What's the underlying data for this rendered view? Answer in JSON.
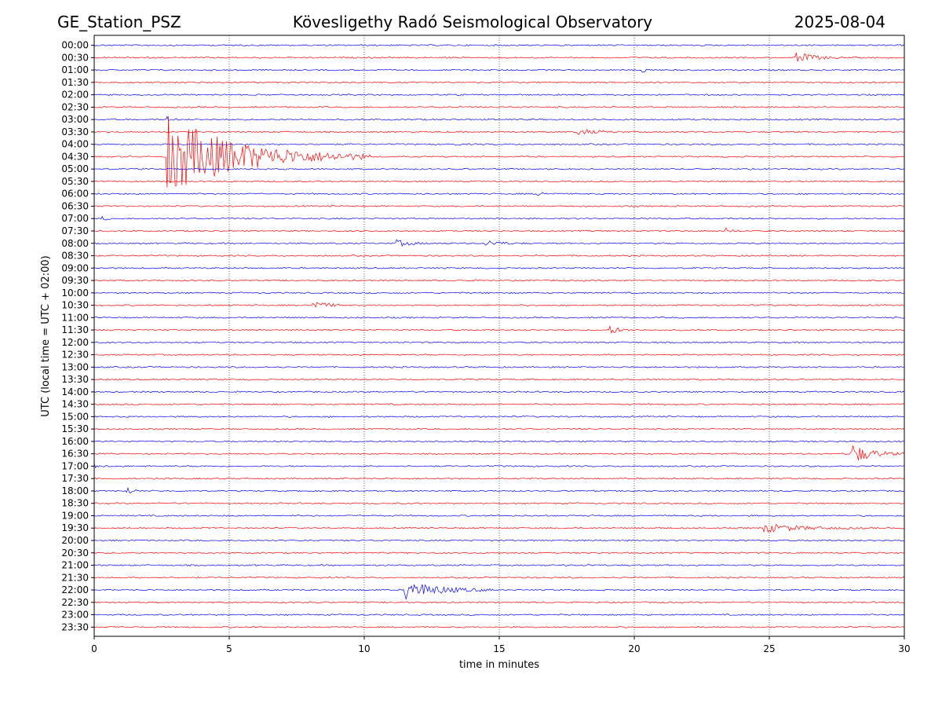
{
  "header": {
    "station": "GE_Station_PSZ",
    "title": "Kövesligethy Radó Seismological Observatory",
    "date": "2025-08-04"
  },
  "chart_data": {
    "type": "line",
    "subtype": "helicorder",
    "xlabel": "time in minutes",
    "ylabel": "UTC (local time = UTC + 02:00)",
    "xlim": [
      0,
      30
    ],
    "xticks": [
      0,
      5,
      10,
      15,
      20,
      25,
      30
    ],
    "grid": "vertical dotted lines at 5-minute intervals",
    "colors": [
      "#0000ff",
      "#ff0000"
    ],
    "rows": [
      "00:00",
      "00:30",
      "01:00",
      "01:30",
      "02:00",
      "02:30",
      "03:00",
      "03:30",
      "04:00",
      "04:30",
      "05:00",
      "05:30",
      "06:00",
      "06:30",
      "07:00",
      "07:30",
      "08:00",
      "08:30",
      "09:00",
      "09:30",
      "10:00",
      "10:30",
      "11:00",
      "11:30",
      "12:00",
      "12:30",
      "13:00",
      "13:30",
      "14:00",
      "14:30",
      "15:00",
      "15:30",
      "16:00",
      "16:30",
      "17:00",
      "17:30",
      "18:00",
      "18:30",
      "19:00",
      "19:30",
      "20:00",
      "20:30",
      "21:00",
      "21:30",
      "22:00",
      "22:30",
      "23:00",
      "23:30"
    ],
    "events": [
      {
        "row": "00:30",
        "start_min": 26.0,
        "duration_min": 1.8,
        "amplitude": 0.45
      },
      {
        "row": "01:00",
        "start_min": 20.3,
        "duration_min": 0.6,
        "amplitude": 0.2
      },
      {
        "row": "02:30",
        "start_min": 15.7,
        "duration_min": 0.3,
        "amplitude": 0.1
      },
      {
        "row": "03:00",
        "start_min": 2.7,
        "duration_min": 0.5,
        "amplitude": 0.2
      },
      {
        "row": "03:30",
        "start_min": 17.9,
        "duration_min": 1.8,
        "amplitude": 0.25
      },
      {
        "row": "04:00",
        "start_min": 13.4,
        "duration_min": 0.4,
        "amplitude": 0.1
      },
      {
        "row": "04:30",
        "start_min": 2.7,
        "duration_min": 7.5,
        "amplitude": 3.3
      },
      {
        "row": "06:00",
        "start_min": 16.4,
        "duration_min": 0.9,
        "amplitude": 0.2
      },
      {
        "row": "07:00",
        "start_min": 0.3,
        "duration_min": 0.6,
        "amplitude": 0.15
      },
      {
        "row": "07:30",
        "start_min": 23.4,
        "duration_min": 0.7,
        "amplitude": 0.2
      },
      {
        "row": "08:00",
        "start_min": 11.2,
        "duration_min": 1.5,
        "amplitude": 0.25
      },
      {
        "row": "08:00",
        "start_min": 14.5,
        "duration_min": 1.5,
        "amplitude": 0.25
      },
      {
        "row": "10:30",
        "start_min": 8.1,
        "duration_min": 1.4,
        "amplitude": 0.35
      },
      {
        "row": "11:30",
        "start_min": 19.1,
        "duration_min": 1.0,
        "amplitude": 0.35
      },
      {
        "row": "16:30",
        "start_min": 28.0,
        "duration_min": 2.0,
        "amplitude": 0.9
      },
      {
        "row": "17:00",
        "start_min": 0.0,
        "duration_min": 0.6,
        "amplitude": 0.15
      },
      {
        "row": "18:00",
        "start_min": 1.2,
        "duration_min": 0.6,
        "amplitude": 0.35
      },
      {
        "row": "19:30",
        "start_min": 24.8,
        "duration_min": 4.0,
        "amplitude": 0.35
      },
      {
        "row": "21:00",
        "start_min": 18.2,
        "duration_min": 0.5,
        "amplitude": 0.1
      },
      {
        "row": "22:00",
        "start_min": 11.5,
        "duration_min": 3.4,
        "amplitude": 0.8
      }
    ]
  }
}
